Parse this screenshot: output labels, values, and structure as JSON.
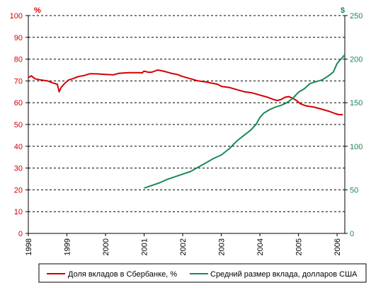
{
  "chart_data": {
    "type": "line",
    "left_axis": {
      "unit": "%",
      "ylim": [
        0,
        100
      ],
      "ticks": [
        0,
        10,
        20,
        30,
        40,
        50,
        60,
        70,
        80,
        90,
        100
      ]
    },
    "right_axis": {
      "unit": "$",
      "ylim": [
        0,
        250
      ],
      "ticks": [
        0,
        50,
        100,
        150,
        200,
        250
      ]
    },
    "x_axis": {
      "xlim": [
        1998,
        2006.2
      ],
      "ticks": [
        "1998",
        "1999",
        "2000",
        "2001",
        "2002",
        "2003",
        "2004",
        "2005",
        "2006"
      ]
    },
    "grid": true,
    "legend_placement": "bottom",
    "series": [
      {
        "name": "Доля вкладов в Сбербанке, %",
        "axis": "left",
        "color": "#d40000",
        "x": [
          1998.0,
          1998.08,
          1998.17,
          1998.3,
          1998.5,
          1998.65,
          1998.75,
          1998.8,
          1998.85,
          1998.95,
          1999.05,
          1999.15,
          1999.3,
          1999.45,
          1999.6,
          1999.8,
          2000.0,
          2000.2,
          2000.35,
          2000.6,
          2000.85,
          2000.95,
          2001.0,
          2001.1,
          2001.2,
          2001.35,
          2001.5,
          2001.7,
          2001.85,
          2002.0,
          2002.2,
          2002.4,
          2002.6,
          2002.75,
          2002.9,
          2003.0,
          2003.2,
          2003.4,
          2003.6,
          2003.8,
          2004.0,
          2004.2,
          2004.35,
          2004.45,
          2004.55,
          2004.65,
          2004.75,
          2004.85,
          2004.95,
          2005.05,
          2005.2,
          2005.4,
          2005.6,
          2005.8,
          2005.95,
          2006.05,
          2006.15
        ],
        "values": [
          71.5,
          72.3,
          71.0,
          70.5,
          70.0,
          69.0,
          68.5,
          65.0,
          67.0,
          69.0,
          70.5,
          71.0,
          72.0,
          72.5,
          73.3,
          73.2,
          73.0,
          72.8,
          73.5,
          73.8,
          73.8,
          73.7,
          74.5,
          74.0,
          74.0,
          75.0,
          74.5,
          73.5,
          73.0,
          72.0,
          71.0,
          70.0,
          69.5,
          69.0,
          68.5,
          67.5,
          67.0,
          66.0,
          65.0,
          64.5,
          63.5,
          62.5,
          61.5,
          61.0,
          61.5,
          62.5,
          62.8,
          62.0,
          61.0,
          59.5,
          58.5,
          58.0,
          57.0,
          56.0,
          55.0,
          54.5,
          54.5
        ]
      },
      {
        "name": "Средний размер вклада, долларов США",
        "axis": "right",
        "color": "#1a8a55",
        "x": [
          2001.0,
          2001.2,
          2001.4,
          2001.6,
          2001.8,
          2002.0,
          2002.2,
          2002.4,
          2002.6,
          2002.8,
          2003.0,
          2003.2,
          2003.4,
          2003.6,
          2003.75,
          2003.9,
          2004.0,
          2004.1,
          2004.25,
          2004.4,
          2004.55,
          2004.7,
          2004.85,
          2005.0,
          2005.15,
          2005.3,
          2005.45,
          2005.6,
          2005.75,
          2005.9,
          2006.0,
          2006.1,
          2006.2
        ],
        "values": [
          52,
          55,
          58,
          62,
          65,
          68,
          71,
          76,
          81,
          86,
          90,
          97,
          106,
          113,
          118,
          125,
          133,
          138,
          142,
          145,
          147,
          150,
          155,
          162,
          166,
          172,
          174,
          176,
          180,
          185,
          195,
          200,
          205
        ]
      }
    ]
  },
  "legend": {
    "item1": "Доля вкладов в Сбербанке, %",
    "item2": "Средний размер вклада, долларов США"
  },
  "colors": {
    "left": "#d40000",
    "right": "#1a8a55",
    "grid": "#000000"
  }
}
